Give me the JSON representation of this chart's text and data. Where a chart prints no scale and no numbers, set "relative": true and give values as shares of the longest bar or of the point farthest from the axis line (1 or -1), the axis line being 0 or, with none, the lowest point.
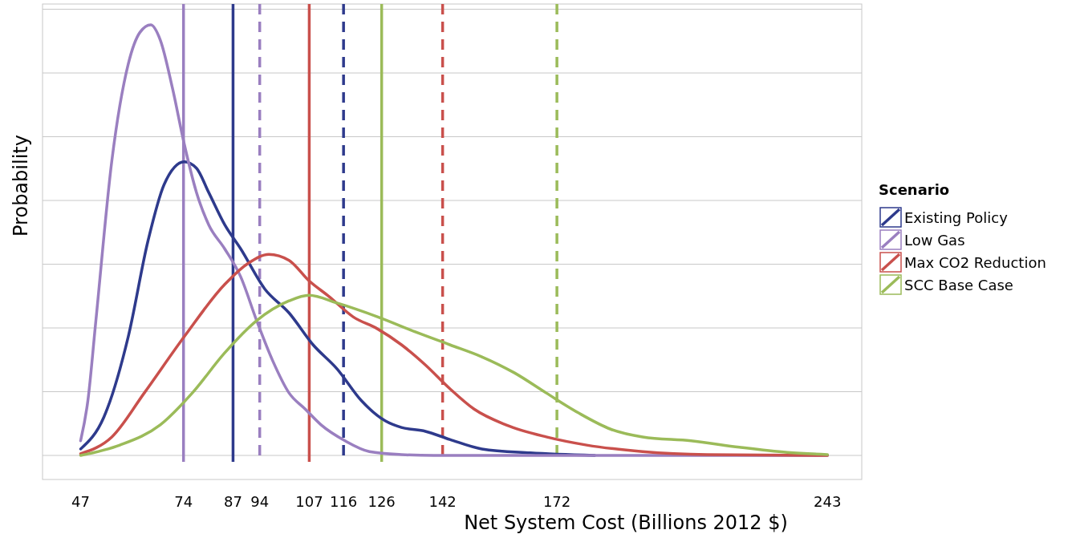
{
  "chart_data": {
    "type": "line",
    "xlabel": "Net System Cost (Billions 2012 $)",
    "ylabel": "Probability",
    "legend_title": "Scenario",
    "relative": true,
    "grid": "y",
    "legend": "right",
    "xlim": [
      37,
      252
    ],
    "xticks": [
      47,
      74,
      87,
      94,
      107,
      116,
      126,
      142,
      172,
      243
    ],
    "series": [
      {
        "name": "Existing Policy",
        "color": "#2e3a8c",
        "x": [
          47,
          53.1,
          59.5,
          64.7,
          68.9,
          74.2,
          77.4,
          80.6,
          84.8,
          89.0,
          95.3,
          101.7,
          108.0,
          114.3,
          120.7,
          127.0,
          131.2,
          137.5,
          143.9,
          152.3,
          165.0,
          181.9
        ],
        "values": [
          0.015,
          0.089,
          0.276,
          0.499,
          0.629,
          0.682,
          0.667,
          0.611,
          0.536,
          0.48,
          0.387,
          0.331,
          0.257,
          0.201,
          0.127,
          0.08,
          0.065,
          0.056,
          0.037,
          0.015,
          0.006,
          0
        ]
      },
      {
        "name": "Low Gas",
        "color": "#9a7fc0",
        "x": [
          47,
          48.9,
          51.0,
          55.2,
          59.5,
          62.6,
          65.4,
          67.9,
          71.1,
          74.2,
          77.4,
          80.6,
          84.8,
          89.0,
          93.2,
          97.4,
          101.7,
          105.9,
          110.1,
          116.4,
          122.8,
          131.2,
          139.7,
          243
        ],
        "values": [
          0.034,
          0.127,
          0.313,
          0.685,
          0.909,
          0.983,
          1,
          0.965,
          0.853,
          0.723,
          0.611,
          0.536,
          0.48,
          0.415,
          0.313,
          0.22,
          0.145,
          0.108,
          0.071,
          0.034,
          0.009,
          0.002,
          0,
          0
        ]
      },
      {
        "name": "Max CO2 Reduction",
        "color": "#c9504c",
        "x": [
          47,
          55.2,
          63.7,
          74.2,
          84.8,
          91.1,
          96.4,
          101.7,
          106.9,
          112.2,
          118.5,
          124.9,
          131.2,
          137.5,
          143.9,
          150.2,
          158.6,
          169.2,
          179.8,
          194.5,
          211.4,
          243
        ],
        "values": [
          0.004,
          0.043,
          0.145,
          0.276,
          0.397,
          0.447,
          0.467,
          0.453,
          0.406,
          0.369,
          0.322,
          0.294,
          0.257,
          0.21,
          0.155,
          0.108,
          0.071,
          0.043,
          0.024,
          0.009,
          0.002,
          0
        ]
      },
      {
        "name": "SCC Base Case",
        "color": "#9bbb59",
        "x": [
          47,
          57.3,
          67.9,
          76.3,
          84.8,
          93.2,
          101.7,
          106.9,
          114.3,
          124.9,
          135.4,
          143.9,
          152.3,
          160.8,
          169.2,
          177.6,
          186.1,
          194.5,
          207.2,
          219.9,
          232.5,
          243
        ],
        "values": [
          0,
          0.024,
          0.071,
          0.145,
          0.238,
          0.313,
          0.359,
          0.372,
          0.354,
          0.322,
          0.285,
          0.257,
          0.229,
          0.192,
          0.145,
          0.099,
          0.061,
          0.043,
          0.034,
          0.019,
          0.007,
          0.002
        ]
      }
    ],
    "ref_lines": [
      {
        "axis": "x",
        "value": 74,
        "color": "#9a7fc0",
        "line_style": "solid"
      },
      {
        "axis": "x",
        "value": 87,
        "color": "#2e3a8c",
        "line_style": "solid"
      },
      {
        "axis": "x",
        "value": 94,
        "color": "#9a7fc0",
        "line_style": "dashed"
      },
      {
        "axis": "x",
        "value": 107,
        "color": "#c9504c",
        "line_style": "solid"
      },
      {
        "axis": "x",
        "value": 116,
        "color": "#2e3a8c",
        "line_style": "dashed"
      },
      {
        "axis": "x",
        "value": 126,
        "color": "#9bbb59",
        "line_style": "solid"
      },
      {
        "axis": "x",
        "value": 142,
        "color": "#c9504c",
        "line_style": "dashed"
      },
      {
        "axis": "x",
        "value": 172,
        "color": "#9bbb59",
        "line_style": "dashed"
      }
    ]
  }
}
